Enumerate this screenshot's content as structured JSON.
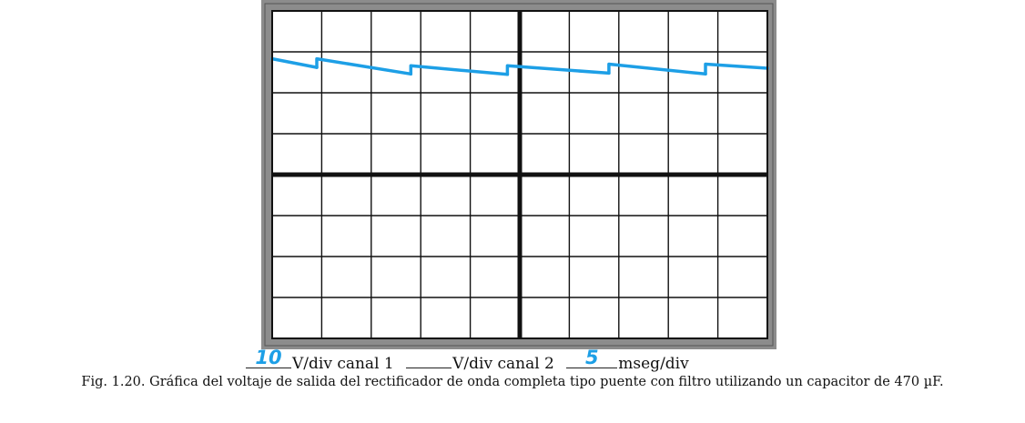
{
  "chart_data": {
    "type": "line",
    "title": "",
    "xlabel": "",
    "ylabel": "",
    "grid": true,
    "grid_divisions": {
      "x": 10,
      "y": 8
    },
    "xlim": [
      0,
      10
    ],
    "ylim": [
      -4,
      4
    ],
    "colors": {
      "trace": "#1d9fe6",
      "grid": "#111111",
      "bezel": "#8c8c8c"
    },
    "series": [
      {
        "segments": [
          [
            [
              0.0,
              2.83
            ],
            [
              0.9,
              2.62
            ]
          ],
          [
            [
              0.9,
              2.62
            ],
            [
              0.9,
              2.83
            ],
            [
              2.8,
              2.46
            ]
          ],
          [
            [
              2.8,
              2.46
            ],
            [
              2.8,
              2.66
            ],
            [
              4.75,
              2.45
            ]
          ],
          [
            [
              4.75,
              2.45
            ],
            [
              4.75,
              2.66
            ],
            [
              6.8,
              2.48
            ]
          ],
          [
            [
              6.8,
              2.48
            ],
            [
              6.8,
              2.7
            ],
            [
              8.75,
              2.46
            ]
          ],
          [
            [
              8.75,
              2.46
            ],
            [
              8.75,
              2.7
            ],
            [
              10.0,
              2.6
            ]
          ]
        ]
      }
    ]
  },
  "settings": {
    "ch1_value": "10",
    "ch1_unit": "V/div canal 1",
    "ch2_value": "",
    "ch2_unit": "V/div canal 2",
    "time_value": "5",
    "time_unit": "mseg/div"
  },
  "caption": "Fig. 1.20. Gráfica del voltaje de salida del rectificador de onda completa tipo puente con filtro utilizando un capacitor de 470 µF."
}
